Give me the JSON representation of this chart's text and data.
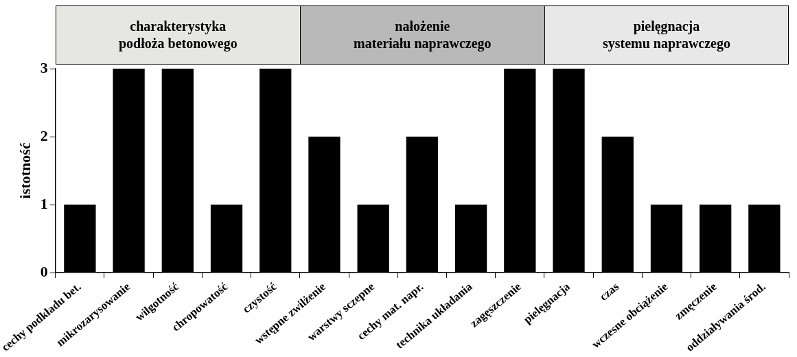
{
  "chart_data": {
    "type": "bar",
    "ylabel": "istotność",
    "categories": [
      "cechy podkładu bet.",
      "mikrozarysowanie",
      "wilgotność",
      "chropowatość",
      "czystość",
      "wstępne zwilżenie",
      "warstwy sczepne",
      "cechy mat. napr.",
      "technika układania",
      "zagęszczenie",
      "pielęgnacja",
      "czas",
      "wczesne obciążenie",
      "zmęczenie",
      "oddziaływania środ."
    ],
    "values": [
      1,
      3,
      3,
      1,
      3,
      2,
      1,
      2,
      1,
      3,
      3,
      2,
      1,
      1,
      1
    ],
    "color": "#000000",
    "ylim": [
      0,
      3
    ],
    "yticks": [
      0,
      1,
      2,
      3
    ],
    "grid": false,
    "legend": false,
    "annotations": [
      "charakterystyka\npodłoża betonowego",
      "nałożenie\nmateriału naprawczego",
      "pielęgnacja\nsystemu naprawczego"
    ]
  }
}
